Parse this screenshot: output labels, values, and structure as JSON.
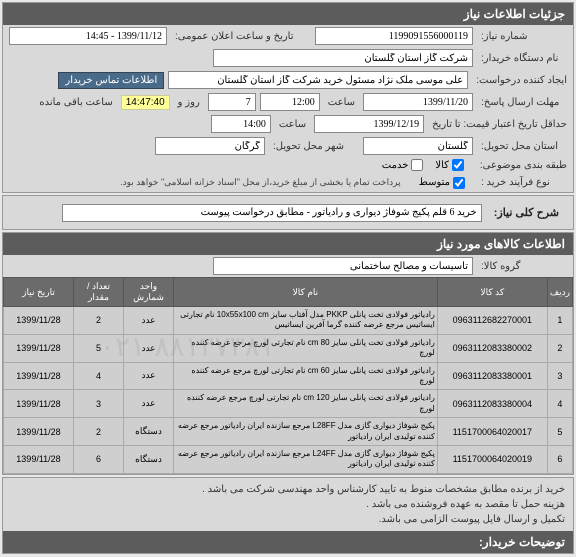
{
  "header": {
    "title": "جزئیات اطلاعات نیاز"
  },
  "form": {
    "need_no_label": "شماره نیاز:",
    "need_no": "1199091556000119",
    "announce_label": "تاریخ و ساعت اعلان عمومی:",
    "announce": "1399/11/12 - 14:45",
    "buyer_org_label": "نام دستگاه خریدار:",
    "buyer_org": "شرکت گاز استان گلستان",
    "creator_label": "ایجاد کننده درخواست:",
    "creator": "علی موسی ملک نژاد مسئول خرید شرکت گاز استان گلستان",
    "contact_btn": "اطلاعات تماس خریدار",
    "deadline_label": "مهلت ارسال پاسخ:",
    "deadline_date": "1399/11/20",
    "time_word": "ساعت",
    "deadline_time": "12:00",
    "days_remain": "7",
    "days_word": "روز و",
    "countdown": "14:47:40",
    "remain_word": "ساعت باقی مانده",
    "valid_label": "حداقل تاریخ اعتبار قیمت: تا تاریخ",
    "valid_date": "1399/12/19",
    "valid_time": "14:00",
    "deliver_prov_label": "استان محل تحویل:",
    "deliver_prov": "گلستان",
    "deliver_city_label": "شهر محل تحویل:",
    "deliver_city": "گرگان",
    "budget_label": "طبقه بندی موضوعی:",
    "cb_goods": "کالا",
    "cb_service": "خدمت",
    "process_label": "نوع فرآیند خرید :",
    "cb_mid": "متوسط",
    "process_note": "پرداخت تمام یا بخشی از مبلغ خرید،از محل \"اسناد خزانه اسلامی\" خواهد بود."
  },
  "desc": {
    "label": "شرح کلی نیاز:",
    "text": "خرید 6 قلم پکیج شوفاژ دیواری و رادیاتور - مطابق درخواست پیوست"
  },
  "goods": {
    "header": "اطلاعات کالاهای مورد نیاز",
    "group_label": "گروه کالا:",
    "group": "تاسیسات و مصالح ساختمانی"
  },
  "table": {
    "cols": [
      "ردیف",
      "کد کالا",
      "نام کالا",
      "واحد شمارش",
      "تعداد / مقدار",
      "تاریخ نیاز"
    ],
    "rows": [
      {
        "n": "1",
        "code": "0963112682270001",
        "desc": "رادیاتور فولادی تخت پانلی PKKP مدل آفتاب سایز 10x55x100 cm نام تجارتی ایساتیس مرجع عرضه کننده گرما آفرین ایساتیس",
        "unit": "عدد",
        "qty": "2",
        "date": "1399/11/28"
      },
      {
        "n": "2",
        "code": "0963112083380002",
        "desc": "رادیاتور فولادی تخت پانلی سایز 80 cm نام تجارتی لورچ مرجع عرضه کننده لورچ",
        "unit": "عدد",
        "qty": "5",
        "date": "1399/11/28"
      },
      {
        "n": "3",
        "code": "0963112083380001",
        "desc": "رادیاتور فولادی تخت پانلی سایز 60 cm نام تجارتی لورچ مرجع عرضه کننده لورچ",
        "unit": "عدد",
        "qty": "4",
        "date": "1399/11/28"
      },
      {
        "n": "4",
        "code": "0963112083380004",
        "desc": "رادیاتور فولادی تخت پانلی سایز 120 cm نام تجارتی لورچ مرجع عرضه کننده لورچ",
        "unit": "عدد",
        "qty": "3",
        "date": "1399/11/28"
      },
      {
        "n": "5",
        "code": "1151700064020017",
        "desc": "پکیج شوفاژ دیواری گازی مدل L28FF مرجع سازنده ایران رادیاتور مرجع عرضه کننده تولیدی ایران رادیاتور",
        "unit": "دستگاه",
        "qty": "2",
        "date": "1399/11/28"
      },
      {
        "n": "6",
        "code": "1151700064020019",
        "desc": "پکیج شوفاژ دیواری گازی مدل L24FF مرجع سازنده ایران رادیاتور مرجع عرضه کننده تولیدی ایران رادیاتور",
        "unit": "دستگاه",
        "qty": "6",
        "date": "1399/11/28"
      }
    ]
  },
  "footer": {
    "l1": "خرید از برنده مطابق مشخصات منوط به تایید کارشناس واحد مهندسی  شرکت می باشد .",
    "l2": "هزینه حمل تا مقصد به عهده فروشنده می باشد .",
    "l3": "تکمیل و ارسال فایل پیوست الزامی می باشد."
  },
  "footer_header": "توضیحات خریدار:",
  "watermark": "۰۲۱-۸۸۱۲۷۳۸۱"
}
